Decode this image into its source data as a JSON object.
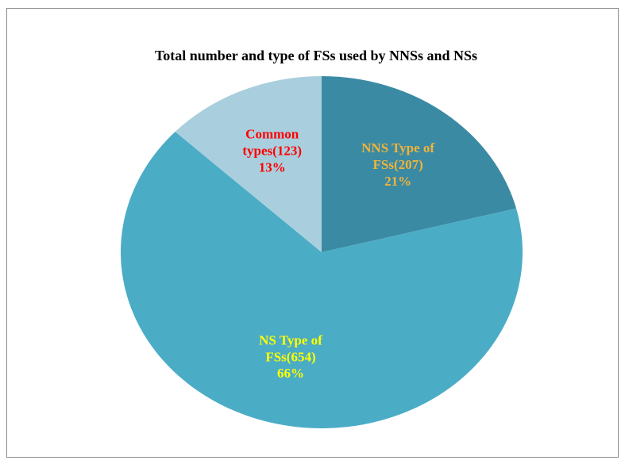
{
  "chart_data": {
    "type": "pie",
    "title": "Total number and type of FSs used by NNSs and NSs",
    "categories": [
      "NNS Type of FSs(207)",
      "NS Type of FSs(654)",
      "Common types(123)"
    ],
    "values": [
      21,
      66,
      13
    ],
    "value_labels": [
      "21%",
      "66%",
      "13%"
    ],
    "colors": [
      "#3b8aa3",
      "#4bacc6",
      "#a9cfde"
    ],
    "label_colors": [
      "#f0b43a",
      "#ffff00",
      "#ff0000"
    ]
  }
}
